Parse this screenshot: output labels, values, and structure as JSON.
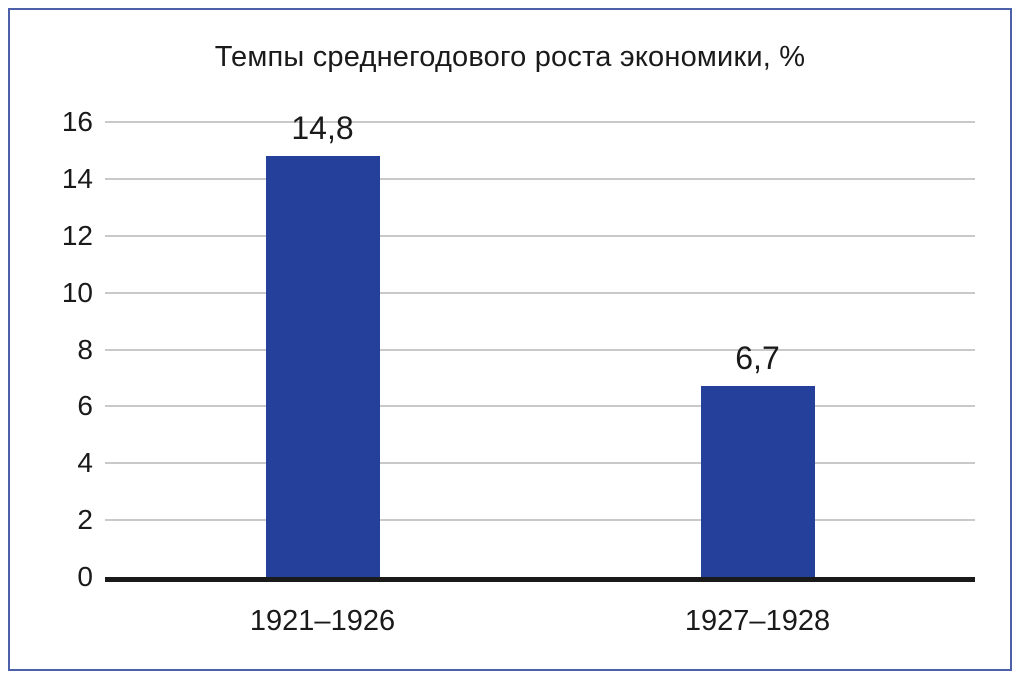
{
  "chart_data": {
    "type": "bar",
    "title": "Темпы среднегодового роста экономики, %",
    "categories": [
      "1921–1926",
      "1927–1928"
    ],
    "values": [
      14.8,
      6.7
    ],
    "value_labels": [
      "14,8",
      "6,7"
    ],
    "xlabel": "",
    "ylabel": "",
    "ylim": [
      0,
      16
    ],
    "yticks": [
      0,
      2,
      4,
      6,
      8,
      10,
      12,
      14,
      16
    ],
    "grid": true,
    "legend_position": "none",
    "bar_color": "#24409b",
    "grid_color": "#c9c9c9",
    "axis_color": "#1a1a1a",
    "text_color": "#1a1a1a",
    "frame_border_color": "#4c61a9",
    "background_color": "#ffffff"
  }
}
